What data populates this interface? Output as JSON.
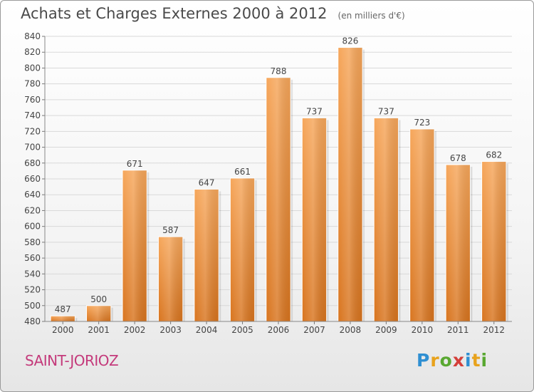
{
  "header": {
    "title": "Achats et Charges Externes 2000 à 2012",
    "subtitle": "(en milliers d'€)"
  },
  "commune": "SAINT-JORIOZ",
  "logo": {
    "text": "Proxiti",
    "letters": [
      {
        "ch": "P",
        "color": "#2f8fd2"
      },
      {
        "ch": "r",
        "color": "#e8a21c"
      },
      {
        "ch": "o",
        "color": "#59a831"
      },
      {
        "ch": "x",
        "color": "#d43f3a"
      },
      {
        "ch": "i",
        "color": "#2f8fd2"
      },
      {
        "ch": "t",
        "color": "#e8a21c"
      },
      {
        "ch": "i",
        "color": "#59a831"
      }
    ]
  },
  "colors": {
    "bar_top": "#f6a65a",
    "bar_bottom": "#d8741e",
    "grid": "#d9d9d9",
    "axis_text": "#444444"
  },
  "chart_data": {
    "type": "bar",
    "title": "Achats et Charges Externes 2000 à 2012",
    "subtitle": "(en milliers d'€)",
    "categories": [
      "2000",
      "2001",
      "2002",
      "2003",
      "2004",
      "2005",
      "2006",
      "2007",
      "2008",
      "2009",
      "2010",
      "2011",
      "2012"
    ],
    "values": [
      487,
      500,
      671,
      587,
      647,
      661,
      788,
      737,
      826,
      737,
      723,
      678,
      682
    ],
    "ylim": [
      480,
      840
    ],
    "yticks": [
      480,
      500,
      520,
      540,
      560,
      580,
      600,
      620,
      640,
      660,
      680,
      700,
      720,
      740,
      760,
      780,
      800,
      820,
      840
    ],
    "grid": true,
    "data_labels": true
  }
}
